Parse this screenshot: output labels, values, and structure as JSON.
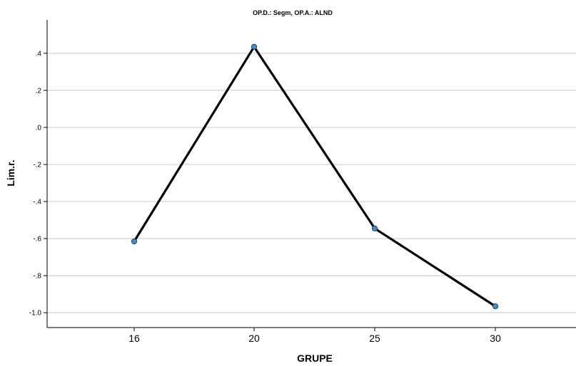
{
  "chart_data": {
    "type": "line",
    "title": "OP.D.: Segm, OP.A.: ALND",
    "xlabel": "GRUPE",
    "ylabel": "Lim.r.",
    "categories": [
      "16",
      "20",
      "25",
      "30"
    ],
    "values": [
      -0.615,
      0.435,
      -0.545,
      -0.965
    ],
    "ylim": [
      -1.08,
      0.58
    ],
    "yticks": [
      0.4,
      0.2,
      0.0,
      -0.2,
      -0.4,
      -0.6,
      -0.8,
      -1.0
    ],
    "ytick_labels": [
      ".4",
      ".2",
      ".0",
      "-.2",
      "-.4",
      "-.6",
      "-.8",
      "-1.0"
    ],
    "grid": true,
    "legend": "none",
    "colors": {
      "line": "#000000",
      "marker_fill": "#3d8fd6",
      "marker_stroke": "#1a3f66",
      "grid": "#c8c8c8",
      "axis": "#000000"
    }
  }
}
